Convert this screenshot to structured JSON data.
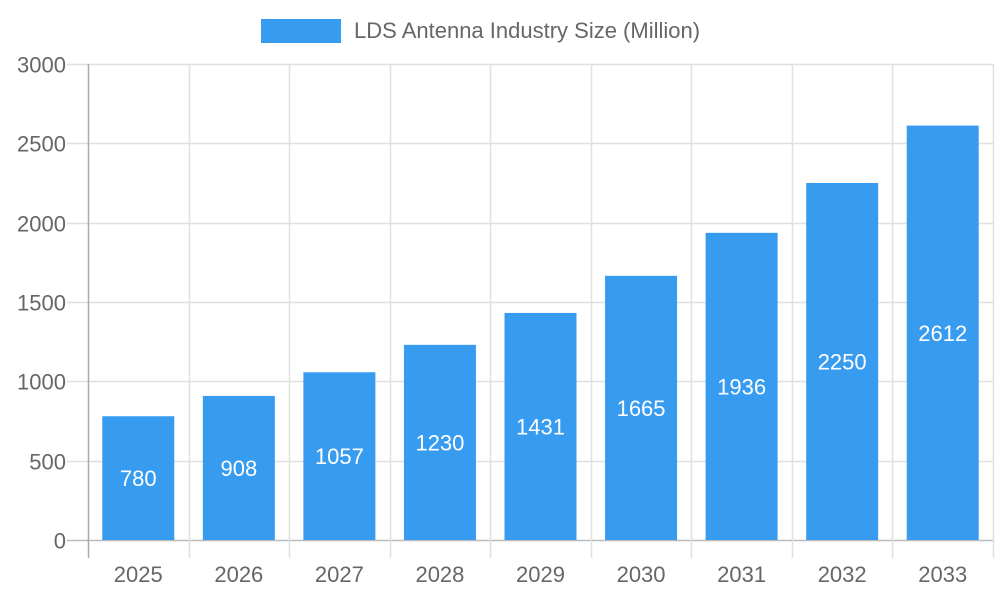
{
  "chart_data": {
    "type": "bar",
    "categories": [
      "2025",
      "2026",
      "2027",
      "2028",
      "2029",
      "2030",
      "2031",
      "2032",
      "2033"
    ],
    "series": [
      {
        "name": "LDS Antenna Industry Size (Million)",
        "values": [
          780,
          908,
          1057,
          1230,
          1431,
          1665,
          1936,
          2250,
          2612
        ],
        "color": "#379CF0"
      }
    ],
    "yticks": [
      0,
      500,
      1000,
      1500,
      2000,
      2500,
      3000
    ],
    "ylim": [
      0,
      3000
    ],
    "grid": true,
    "legend": "top-center",
    "data_labels": true,
    "title": "",
    "xlabel": "",
    "ylabel": ""
  }
}
